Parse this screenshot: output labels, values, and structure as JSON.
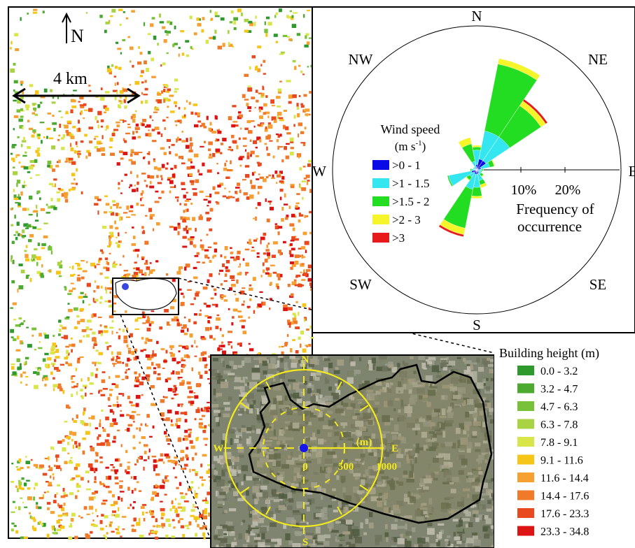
{
  "map": {
    "north_label": "N",
    "scale_label": "4 km"
  },
  "wind_rose": {
    "directions": [
      "N",
      "NE",
      "E",
      "SE",
      "S",
      "SW",
      "W",
      "NW"
    ],
    "radial_ticks": [
      "10%",
      "20%"
    ],
    "radial_title": [
      "Frequency of",
      "occurrence"
    ],
    "legend_title": "Wind speed",
    "legend_unit_prefix": "(m s",
    "legend_unit_exp": "-1",
    "legend_unit_suffix": ")",
    "legend": [
      {
        "label": ">0 - 1",
        "color": "#0a0ae6"
      },
      {
        "label": ">1 - 1.5",
        "color": "#33e6f0"
      },
      {
        "label": ">1.5 - 2",
        "color": "#22dd22"
      },
      {
        "label": ">2 - 3",
        "color": "#f5f52a"
      },
      {
        "label": ">3",
        "color": "#e61a1a"
      }
    ]
  },
  "chart_data": {
    "type": "wind_rose",
    "radial_unit": "%",
    "radial_ticks": [
      10,
      20
    ],
    "direction_angles_deg": [
      0,
      22.5,
      45,
      67.5,
      90,
      112.5,
      135,
      157.5,
      180,
      202.5,
      225,
      247.5,
      270,
      292.5,
      315,
      337.5
    ],
    "speed_classes": [
      ">0 - 1",
      ">1 - 1.5",
      ">1.5 - 2",
      ">2 - 3",
      ">3"
    ],
    "petals_cumulative": [
      {
        "dir": 0,
        "values": [
          1.2,
          4.5,
          5.2,
          5.6,
          5.6
        ]
      },
      {
        "dir": 22.5,
        "values": [
          2.5,
          9.0,
          24.5,
          25.8,
          25.8
        ]
      },
      {
        "dir": 45,
        "values": [
          2.5,
          9.0,
          17.5,
          18.8,
          19.3
        ]
      },
      {
        "dir": 67.5,
        "values": [
          1.0,
          3.0,
          4.0,
          4.2,
          4.2
        ]
      },
      {
        "dir": 90,
        "values": [
          0.6,
          1.2,
          1.5,
          1.5,
          1.5
        ]
      },
      {
        "dir": 112.5,
        "values": [
          0.5,
          1.0,
          1.2,
          1.2,
          1.2
        ]
      },
      {
        "dir": 135,
        "values": [
          0.5,
          1.2,
          1.8,
          2.0,
          2.0
        ]
      },
      {
        "dir": 157.5,
        "values": [
          0.8,
          2.5,
          3.5,
          4.2,
          4.2
        ]
      },
      {
        "dir": 180,
        "values": [
          1.0,
          4.0,
          6.0,
          6.5,
          6.5
        ]
      },
      {
        "dir": 202.5,
        "values": [
          1.0,
          4.5,
          13.5,
          15.0,
          15.5
        ]
      },
      {
        "dir": 225,
        "values": [
          0.8,
          2.0,
          2.8,
          3.0,
          3.0
        ]
      },
      {
        "dir": 247.5,
        "values": [
          1.2,
          6.5,
          6.8,
          6.8,
          6.8
        ]
      },
      {
        "dir": 270,
        "values": [
          0.5,
          1.2,
          1.5,
          1.5,
          1.5
        ]
      },
      {
        "dir": 292.5,
        "values": [
          0.3,
          0.8,
          0.9,
          0.9,
          0.9
        ]
      },
      {
        "dir": 315,
        "values": [
          0.3,
          0.8,
          0.9,
          0.9,
          0.9
        ]
      },
      {
        "dir": 337.5,
        "values": [
          0.5,
          2.0,
          6.0,
          7.5,
          7.5
        ]
      }
    ]
  },
  "inset": {
    "compass": {
      "N": "N",
      "E": "E",
      "S": "S",
      "W": "W"
    },
    "unit_label": "(m)",
    "distance_labels": [
      "0",
      "500",
      "1000"
    ]
  },
  "building_legend": {
    "title": "Building height (m)",
    "items": [
      {
        "label": "0.0 - 3.2",
        "color": "#2e9a2e"
      },
      {
        "label": "3.2 - 4.7",
        "color": "#4daa30"
      },
      {
        "label": "4.7 - 6.3",
        "color": "#78c23a"
      },
      {
        "label": "6.3 - 7.8",
        "color": "#a8d444"
      },
      {
        "label": "7.8 - 9.1",
        "color": "#d9e64a"
      },
      {
        "label": "9.1 - 11.6",
        "color": "#f5c518"
      },
      {
        "label": "11.6 - 14.4",
        "color": "#f5a030"
      },
      {
        "label": "14.4 - 17.6",
        "color": "#f07a2a"
      },
      {
        "label": "17.6 - 23.3",
        "color": "#e8491e"
      },
      {
        "label": "23.3 - 34.8",
        "color": "#dd1414"
      }
    ]
  }
}
